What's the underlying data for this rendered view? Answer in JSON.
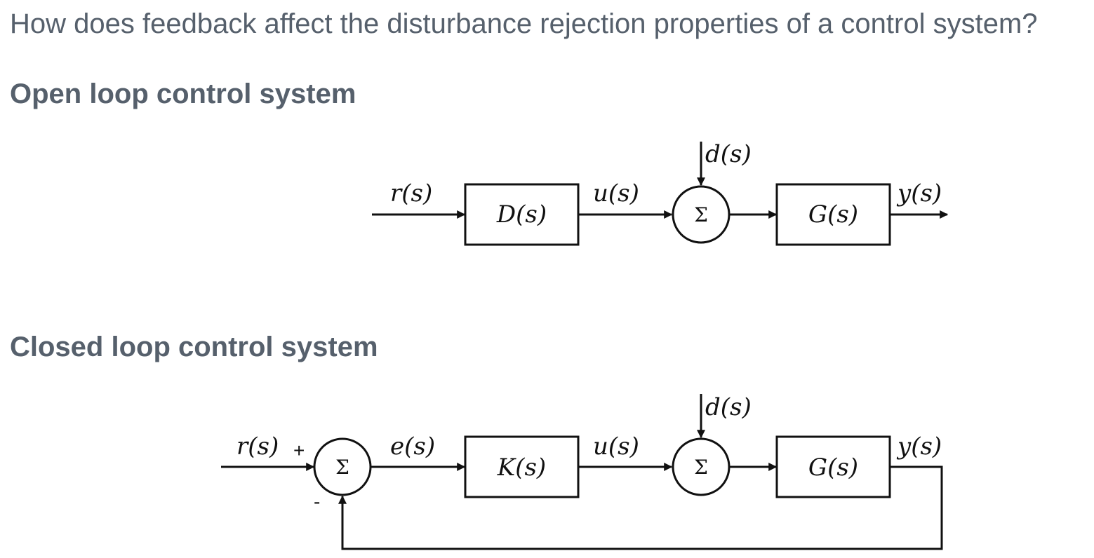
{
  "question": "How does feedback affect the disturbance rejection properties of a control system?",
  "open_loop": {
    "title": "Open loop control system",
    "input_label": "r(s)",
    "controller_label": "D(s)",
    "control_signal_label": "u(s)",
    "disturbance_label": "d(s)",
    "summing_symbol": "Σ",
    "plant_label": "G(s)",
    "output_label": "y(s)"
  },
  "closed_loop": {
    "title": "Closed loop control system",
    "input_label": "r(s)",
    "plus_sign": "+",
    "minus_sign": "-",
    "error_label": "e(s)",
    "controller_label": "K(s)",
    "control_signal_label": "u(s)",
    "disturbance_label": "d(s)",
    "summing_symbol": "Σ",
    "plant_label": "G(s)",
    "output_label": "y(s)"
  }
}
